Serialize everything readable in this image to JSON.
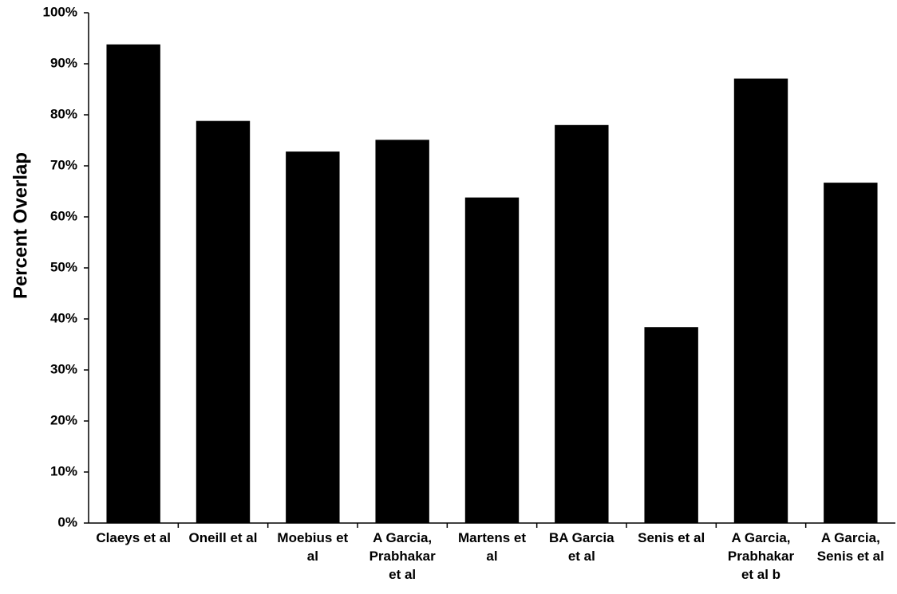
{
  "chart_data": {
    "type": "bar",
    "title": "",
    "xlabel": "",
    "ylabel": "Percent Overlap",
    "ylim": [
      0,
      100
    ],
    "yticks": [
      "0%",
      "10%",
      "20%",
      "30%",
      "40%",
      "50%",
      "60%",
      "70%",
      "80%",
      "90%",
      "100%"
    ],
    "grid": false,
    "legend": "none",
    "bar_color": "#000000",
    "categories": [
      [
        "Claeys et al"
      ],
      [
        "Oneill et al"
      ],
      [
        "Moebius et",
        "al"
      ],
      [
        "A Garcia,",
        "Prabhakar",
        "et al"
      ],
      [
        "Martens et",
        "al"
      ],
      [
        "BA Garcia",
        "et al"
      ],
      [
        "Senis et al"
      ],
      [
        "A Garcia,",
        "Prabhakar",
        "et al b"
      ],
      [
        "A Garcia,",
        "Senis et al"
      ]
    ],
    "values": [
      93.8,
      78.8,
      72.8,
      75.1,
      63.8,
      78.0,
      38.4,
      87.1,
      66.7
    ]
  }
}
